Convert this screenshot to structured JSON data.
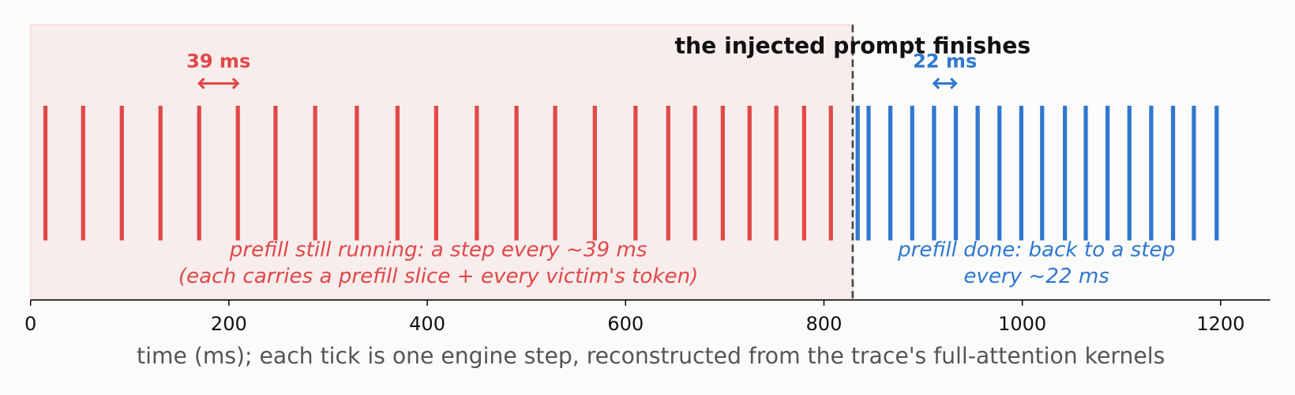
{
  "chart_data": {
    "type": "eventplot",
    "title": "the injected prompt finishes",
    "xlabel": "time (ms); each tick is one engine step, reconstructed from the trace's full-attention kernels",
    "xlim": [
      0,
      1250
    ],
    "xticks": [
      0,
      200,
      400,
      600,
      800,
      1000,
      1200
    ],
    "marker_x": 829,
    "series": [
      {
        "color": "#e04848",
        "x": [
          15,
          53,
          92,
          131,
          170,
          209,
          247,
          287,
          329,
          370,
          409,
          450,
          490,
          529,
          569,
          610,
          643,
          670,
          698,
          725,
          752,
          780,
          807
        ],
        "lines": [
          "prefill still running: a step every ~39 ms",
          "(each carries a prefill slice + every victim's token)"
        ],
        "gap": {
          "label": "39 ms",
          "from": 170,
          "to": 209
        }
      },
      {
        "color": "#2f78d0",
        "x": [
          834,
          845,
          867,
          889,
          911,
          933,
          955,
          977,
          999,
          1020,
          1043,
          1064,
          1086,
          1108,
          1130,
          1152,
          1173,
          1196
        ],
        "lines": [
          "prefill done: back to a step",
          "every ~22 ms"
        ],
        "gap": {
          "label": "22 ms",
          "from": 911,
          "to": 933
        }
      }
    ]
  }
}
